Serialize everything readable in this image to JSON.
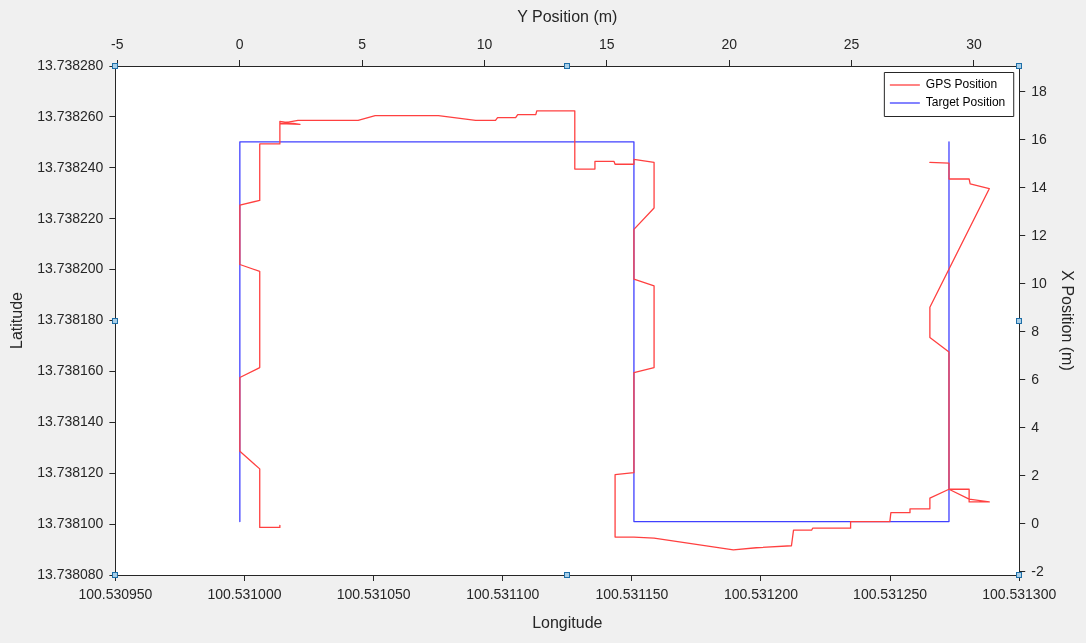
{
  "chart_data": {
    "type": "line",
    "xlabel": "Longitude",
    "ylabel": "Latitude",
    "x2label": "Y Position (m)",
    "y2label": "X Position (m)",
    "xlim": [
      100.53095,
      100.5313
    ],
    "xticks": [
      {
        "value": 100.53095,
        "label": "100.530950"
      },
      {
        "value": 100.531,
        "label": "100.531000"
      },
      {
        "value": 100.53105,
        "label": "100.531050"
      },
      {
        "value": 100.5311,
        "label": "100.531100"
      },
      {
        "value": 100.53115,
        "label": "100.531150"
      },
      {
        "value": 100.5312,
        "label": "100.531200"
      },
      {
        "value": 100.53125,
        "label": "100.531250"
      },
      {
        "value": 100.5313,
        "label": "100.531300"
      }
    ],
    "ylim": [
      13.73808,
      13.73828
    ],
    "yticks": [
      {
        "value": 13.73808,
        "label": "13.738080"
      },
      {
        "value": 13.7381,
        "label": "13.738100"
      },
      {
        "value": 13.73812,
        "label": "13.738120"
      },
      {
        "value": 13.73814,
        "label": "13.738140"
      },
      {
        "value": 13.73816,
        "label": "13.738160"
      },
      {
        "value": 13.73818,
        "label": "13.738180"
      },
      {
        "value": 13.7382,
        "label": "13.738200"
      },
      {
        "value": 13.73822,
        "label": "13.738220"
      },
      {
        "value": 13.73824,
        "label": "13.738240"
      },
      {
        "value": 13.73826,
        "label": "13.738260"
      },
      {
        "value": 13.73828,
        "label": "13.738280"
      }
    ],
    "x2lim": [
      -5.08,
      31.85
    ],
    "x2ticks": [
      -5,
      0,
      5,
      10,
      15,
      20,
      25,
      30
    ],
    "y2lim": [
      -2.14,
      19.08
    ],
    "y2ticks": [
      -2,
      0,
      2,
      4,
      6,
      8,
      10,
      12,
      14,
      16,
      18
    ],
    "grid": false,
    "legend": "top right",
    "marker": "none",
    "line_style": "solid",
    "series": [
      {
        "name": "GPS Position",
        "color": "#ff4040",
        "x": [
          100.5310137,
          100.5310137,
          100.5310059,
          100.5310059,
          100.5309982,
          100.5309982,
          100.5310059,
          100.5310059,
          100.5309982,
          100.5309982,
          100.5310059,
          100.5310059,
          100.5310137,
          100.5310137,
          100.5310215,
          100.5310137,
          100.5310207,
          100.531044,
          100.5310506,
          100.5310751,
          100.5310895,
          100.5310972,
          100.531098,
          100.531105,
          100.5311058,
          100.5311128,
          100.5311132,
          100.5311279,
          100.5311279,
          100.5311357,
          100.5311357,
          100.5311431,
          100.5311435,
          100.5311508,
          100.5311508,
          100.5311586,
          100.5311586,
          100.5311508,
          100.5311508,
          100.5311586,
          100.5311586,
          100.5311508,
          100.5311508,
          100.5311435,
          100.5311435,
          100.5311508,
          100.5311586,
          100.5311893,
          100.5311982,
          100.5312118,
          100.5312126,
          100.5312196,
          100.53122,
          100.5312347,
          100.5312347,
          100.5312421,
          100.5312499,
          100.5312503,
          100.5312577,
          100.5312577,
          100.5312654,
          100.5312654,
          100.5312728,
          100.5312806,
          100.5312806,
          100.5312884,
          100.5312806,
          100.5312728,
          100.5312728,
          100.5312654,
          100.5312654,
          100.5312884,
          100.531281,
          100.5312806,
          100.5312728,
          100.5312728,
          100.5312654
        ],
        "values": [
          13.7380995,
          13.7380987,
          13.7380987,
          13.7381217,
          13.7381286,
          13.7381576,
          13.7381615,
          13.7381993,
          13.738202,
          13.7382253,
          13.7382272,
          13.7382494,
          13.7382494,
          13.7382582,
          13.7382571,
          13.7382574,
          13.7382586,
          13.7382586,
          13.7382605,
          13.7382605,
          13.7382586,
          13.7382586,
          13.7382597,
          13.7382597,
          13.7382609,
          13.7382609,
          13.7382624,
          13.7382624,
          13.7382395,
          13.7382395,
          13.7382425,
          13.7382425,
          13.7382414,
          13.7382414,
          13.7382433,
          13.7382421,
          13.7382242,
          13.7382158,
          13.7381963,
          13.7381936,
          13.7381615,
          13.7381595,
          13.7381202,
          13.7381194,
          13.7380949,
          13.7380949,
          13.7380945,
          13.7380899,
          13.7380907,
          13.7380915,
          13.7380976,
          13.7380976,
          13.7380984,
          13.7380984,
          13.738101,
          13.738101,
          13.738101,
          13.7381045,
          13.7381045,
          13.738106,
          13.738106,
          13.7381102,
          13.7381137,
          13.7381137,
          13.7381087,
          13.7381087,
          13.7381098,
          13.7381137,
          13.7381676,
          13.7381733,
          13.7381852,
          13.7382318,
          13.7382337,
          13.7382356,
          13.7382356,
          13.7382418,
          13.7382421
        ]
      },
      {
        "name": "Target Position",
        "color": "#4040ff",
        "x": [
          100.5309982,
          100.5309982,
          100.5311508,
          100.5311508,
          100.5312728,
          100.5312728
        ],
        "values": [
          13.738101,
          13.7382502,
          13.7382502,
          13.738101,
          13.738101,
          13.7382502
        ]
      }
    ]
  }
}
